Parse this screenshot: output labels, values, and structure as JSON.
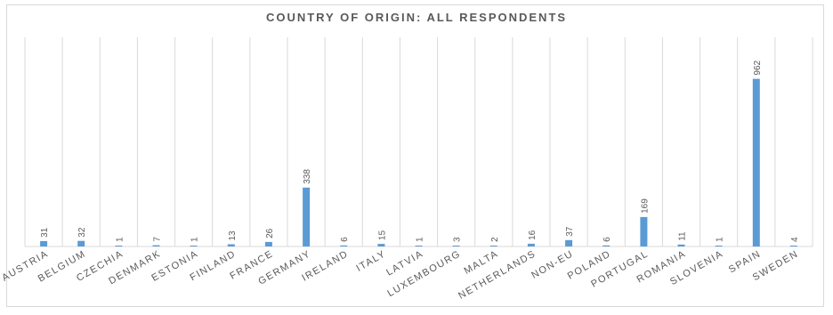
{
  "chart_data": {
    "type": "bar",
    "title": "COUNTRY OF ORIGIN: ALL RESPONDENTS",
    "categories": [
      "AUSTRIA",
      "BELGIUM",
      "CZECHIA",
      "DENMARK",
      "ESTONIA",
      "FINLAND",
      "FRANCE",
      "GERMANY",
      "IRELAND",
      "ITALY",
      "LATVIA",
      "LUXEMBOURG",
      "MALTA",
      "NETHERLANDS",
      "NON-EU",
      "POLAND",
      "PORTUGAL",
      "ROMANIA",
      "SLOVENIA",
      "SPAIN",
      "SWEDEN"
    ],
    "values": [
      31,
      32,
      1,
      7,
      1,
      13,
      26,
      338,
      6,
      15,
      1,
      3,
      2,
      16,
      37,
      6,
      169,
      11,
      1,
      962,
      4
    ],
    "ylim": [
      0,
      1200
    ],
    "grid": "vertical",
    "bar_color": "#5b9bd5",
    "grid_color": "#d9d9d9",
    "xlabel": "",
    "ylabel": ""
  }
}
